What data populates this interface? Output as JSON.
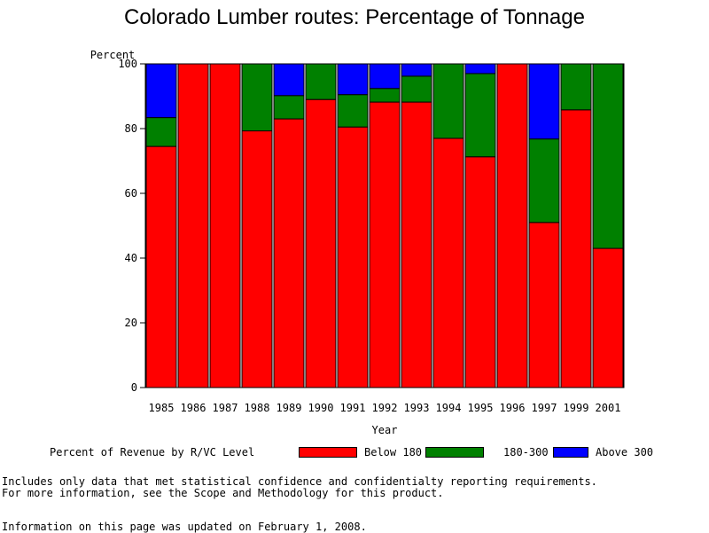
{
  "title": "Colorado Lumber routes: Percentage of Tonnage",
  "legend": {
    "title": "Percent of Revenue by R/VC Level",
    "items": [
      {
        "label": "Below 180",
        "color": "#ff0000"
      },
      {
        "label": "180-300",
        "color": "#008000"
      },
      {
        "label": "Above 300",
        "color": "#0000ff"
      }
    ]
  },
  "footnotes": {
    "line1": "Includes only data that met statistical confidence and confidentialty reporting requirements.",
    "line2": "For more information, see the Scope and Methodology for this product.",
    "line3": "Information on this page was updated on February 1, 2008."
  },
  "chart_data": {
    "type": "bar",
    "stacked": true,
    "title": "Colorado Lumber routes: Percentage of Tonnage",
    "xlabel": "Year",
    "ylabel": "Percent",
    "ylim": [
      0,
      100
    ],
    "yticks": [
      0,
      20,
      40,
      60,
      80,
      100
    ],
    "categories": [
      "1985",
      "1986",
      "1987",
      "1988",
      "1989",
      "1990",
      "1991",
      "1992",
      "1993",
      "1994",
      "1995",
      "1996",
      "1997",
      "1999",
      "2001"
    ],
    "series": [
      {
        "name": "Below 180",
        "color": "#ff0000",
        "values": [
          74.5,
          100,
          100,
          79.3,
          83.0,
          89.0,
          80.5,
          88.2,
          88.2,
          77.0,
          71.3,
          100,
          51.0,
          85.8,
          43.0
        ]
      },
      {
        "name": "180-300",
        "color": "#008000",
        "values": [
          8.9,
          0,
          0,
          20.7,
          7.2,
          11.0,
          10.0,
          4.2,
          8.0,
          23.0,
          25.7,
          0,
          25.8,
          14.2,
          57.0
        ]
      },
      {
        "name": "Above 300",
        "color": "#0000ff",
        "values": [
          16.6,
          0,
          0,
          0,
          9.8,
          0,
          9.5,
          7.6,
          3.8,
          0,
          3.0,
          0,
          23.2,
          0,
          0
        ]
      }
    ],
    "legend_position": "bottom",
    "grid": false
  }
}
